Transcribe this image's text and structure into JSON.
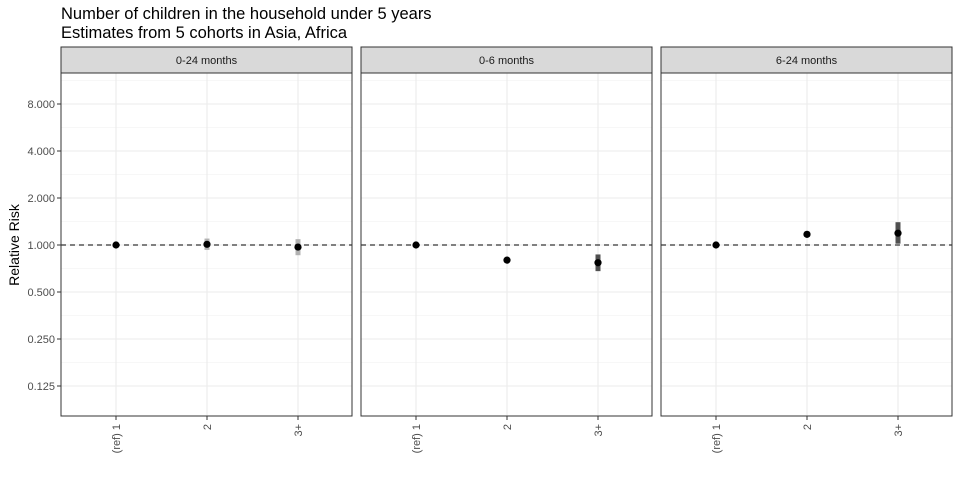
{
  "chart_data": {
    "type": "scatter",
    "title": "Number of children in the household under 5 years",
    "subtitle": "Estimates from 5 cohorts in Asia, Africa",
    "ylabel": "Relative Risk",
    "xlabel": "",
    "y_scale": "log2",
    "ylim": [
      0.1,
      12.5
    ],
    "y_ticks": [
      0.125,
      0.25,
      0.5,
      1,
      2,
      4,
      8
    ],
    "y_tick_labels": [
      "0.125",
      "0.250",
      "0.500",
      "1.000",
      "2.000",
      "4.000",
      "8.000"
    ],
    "categories": [
      "(ref) 1",
      "2",
      "3+"
    ],
    "reference_line": 1,
    "grid": true,
    "panels": [
      {
        "label": "0-24 months",
        "points": [
          {
            "x": "(ref) 1",
            "rr": 1.0,
            "lower": 1.0,
            "upper": 1.0,
            "color": "#000000"
          },
          {
            "x": "2",
            "rr": 1.01,
            "lower": 0.93,
            "upper": 1.1,
            "color": "#a6a6a6"
          },
          {
            "x": "3+",
            "rr": 0.97,
            "lower": 0.86,
            "upper": 1.09,
            "color": "#a6a6a6"
          }
        ]
      },
      {
        "label": "0-6 months",
        "points": [
          {
            "x": "(ref) 1",
            "rr": 1.0,
            "lower": 1.0,
            "upper": 1.0,
            "color": "#000000"
          },
          {
            "x": "2",
            "rr": 0.8,
            "lower": 0.78,
            "upper": 0.82,
            "color": "#000000"
          },
          {
            "x": "3+",
            "rr": 0.77,
            "lower": 0.68,
            "upper": 0.87,
            "color": "#333333"
          }
        ]
      },
      {
        "label": "6-24 months",
        "points": [
          {
            "x": "(ref) 1",
            "rr": 1.0,
            "lower": 1.0,
            "upper": 1.0,
            "color": "#000000"
          },
          {
            "x": "2",
            "rr": 1.17,
            "lower": 1.13,
            "upper": 1.22,
            "color": "#000000"
          },
          {
            "x": "3+",
            "rr": 1.19,
            "lower": 1.02,
            "upper": 1.4,
            "color": "#333333"
          }
        ]
      }
    ]
  }
}
